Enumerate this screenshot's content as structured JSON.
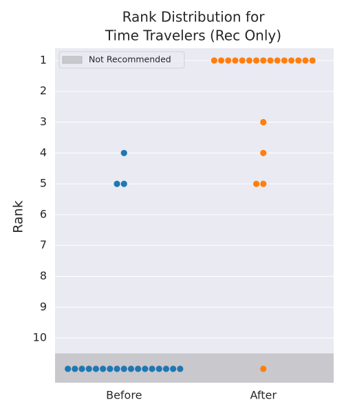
{
  "chart_data": {
    "type": "swarm",
    "title": [
      "Rank Distribution for",
      "Time Travelers (Rec Only)"
    ],
    "ylabel": "Rank",
    "categories": [
      "Before",
      "After"
    ],
    "colors": [
      "#1f77b4",
      "#ff7f0e"
    ],
    "values": [
      [
        11,
        11,
        11,
        11,
        11,
        11,
        11,
        11,
        11,
        11,
        11,
        11,
        11,
        11,
        11,
        11,
        11,
        4,
        5,
        5
      ],
      [
        1,
        1,
        1,
        1,
        1,
        1,
        1,
        1,
        1,
        1,
        1,
        1,
        1,
        1,
        1,
        3,
        4,
        5,
        5,
        11
      ]
    ],
    "ylim": [
      11.45,
      0.6
    ],
    "yticks": [
      1,
      2,
      3,
      4,
      5,
      6,
      7,
      8,
      9,
      10
    ],
    "grid": true,
    "band": {
      "label": "Not Recommended",
      "from": 10.5,
      "color": "#c9c8cd"
    },
    "legend": "upper left"
  }
}
